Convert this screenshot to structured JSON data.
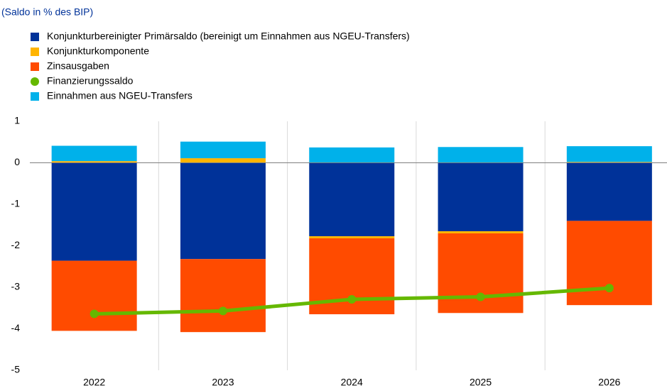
{
  "chart_data": {
    "type": "bar",
    "title": "(Saldo in % des BIP)",
    "categories": [
      "2022",
      "2023",
      "2024",
      "2025",
      "2026"
    ],
    "series": [
      {
        "name": "Konjunkturbereinigter Primärsaldo (bereinigt um Einnahmen aus NGEU-Transfers)",
        "color": "#003299",
        "values": [
          -2.36,
          -2.32,
          -1.77,
          -1.65,
          -1.4
        ]
      },
      {
        "name": "Konjunkturkomponente",
        "color": "#ffb400",
        "values": [
          0.04,
          0.11,
          -0.05,
          -0.05,
          0.02
        ]
      },
      {
        "name": "Zinsausgaben",
        "color": "#ff4b00",
        "values": [
          -1.69,
          -1.76,
          -1.83,
          -1.92,
          -2.03
        ]
      },
      {
        "name": "Finanzierungssaldo",
        "color": "#65b800",
        "type": "line",
        "values": [
          -3.64,
          -3.57,
          -3.29,
          -3.23,
          -3.02
        ]
      },
      {
        "name": "Einnahmen aus NGEU-Transfers",
        "color": "#00b1ea",
        "values": [
          0.37,
          0.4,
          0.37,
          0.38,
          0.38
        ]
      }
    ],
    "ylim": [
      -5,
      1
    ],
    "yticks": [
      -5,
      -4,
      -3,
      -2,
      -1,
      0,
      1
    ]
  }
}
